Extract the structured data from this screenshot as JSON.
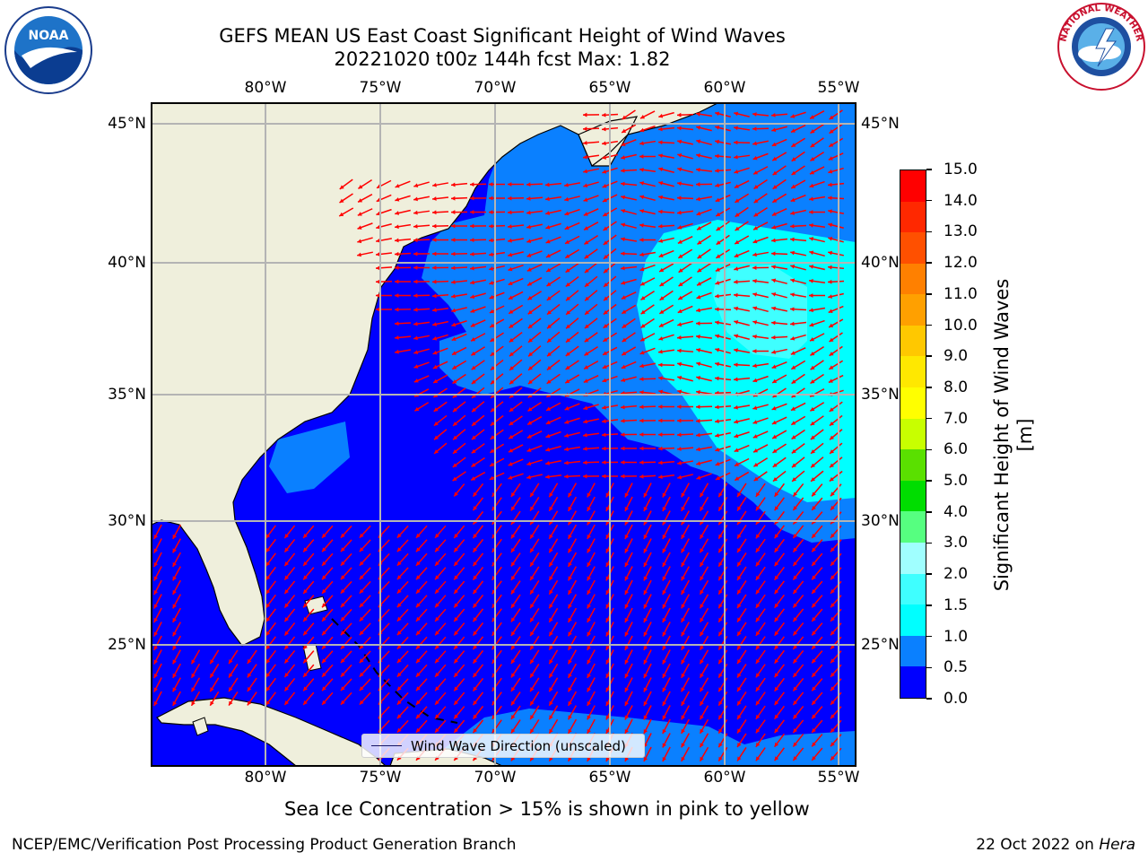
{
  "header": {
    "title_line1": "GEFS MEAN US East Coast Significant Height of Wind Waves",
    "title_line2": "20221020 t00z 144h fcst   Max: 1.82"
  },
  "logos": {
    "left": "noaa-logo",
    "right": "national-weather-service-logo",
    "left_text": "NOAA",
    "right_text": "NATIONAL WEATHER SERVICE"
  },
  "map": {
    "lon_labels": [
      "80°W",
      "75°W",
      "70°W",
      "65°W",
      "60°W",
      "55°W"
    ],
    "lat_labels": [
      "45°N",
      "40°N",
      "35°N",
      "30°N",
      "25°N"
    ],
    "lon_range": [
      "85°W",
      "54.5°W"
    ],
    "lat_range": [
      "20.5°N",
      "46°N"
    ],
    "land_color": "#efefdc",
    "ocean_low_color": "#0000ff",
    "arrow_color": "#ff0000",
    "grid_color": "#b4b4b4"
  },
  "colorbar": {
    "label": "Significant Height of Wind Waves [m]",
    "ticks": [
      "0.0",
      "0.5",
      "1.0",
      "1.5",
      "2.0",
      "3.0",
      "4.0",
      "5.0",
      "6.0",
      "7.0",
      "8.0",
      "9.0",
      "10.0",
      "11.0",
      "12.0",
      "13.0",
      "14.0",
      "15.0"
    ],
    "colors": [
      "#0000ff",
      "#0a80ff",
      "#00ffff",
      "#3fffff",
      "#a0ffff",
      "#56ff80",
      "#00dd00",
      "#5ae000",
      "#c8ff00",
      "#ffff00",
      "#ffe800",
      "#ffc800",
      "#ffa000",
      "#ff8000",
      "#ff5000",
      "#ff2800",
      "#ff0000"
    ]
  },
  "legend": {
    "label": "Wind Wave Direction (unscaled)"
  },
  "footnote": "Sea Ice Concentration > 15% is shown in pink to yellow",
  "credit": "NCEP/EMC/Verification Post Processing Product Generation Branch",
  "date": {
    "text": "22 Oct 2022 on ",
    "host": "Hera"
  }
}
